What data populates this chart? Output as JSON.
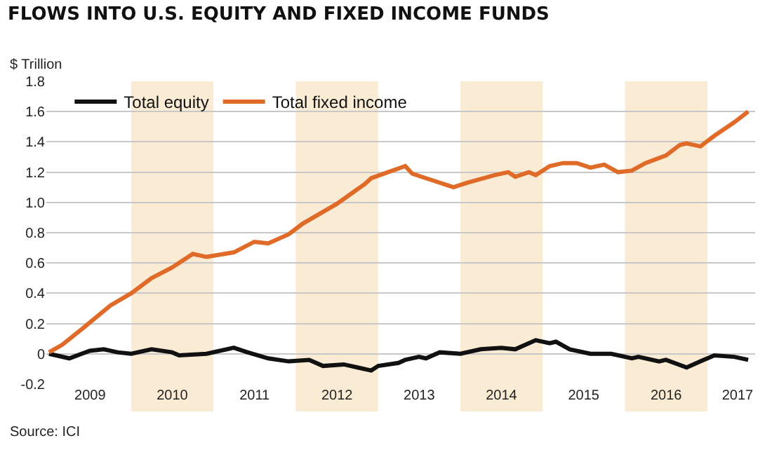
{
  "chart_data": {
    "type": "line",
    "title": "FLOWS INTO U.S. EQUITY AND FIXED INCOME FUNDS",
    "ylabel": "$ Trillion",
    "annotations": [
      "Source: ICI"
    ],
    "xlim": [
      "2008-12-20",
      "2017-08-01"
    ],
    "ylim": [
      -0.2,
      1.8
    ],
    "xticks": [
      {
        "value": "2009-07-02",
        "label": "2009"
      },
      {
        "value": "2010-07-02",
        "label": "2010"
      },
      {
        "value": "2011-07-02",
        "label": "2011"
      },
      {
        "value": "2012-07-02",
        "label": "2012"
      },
      {
        "value": "2013-07-02",
        "label": "2013"
      },
      {
        "value": "2014-07-02",
        "label": "2014"
      },
      {
        "value": "2015-07-02",
        "label": "2015"
      },
      {
        "value": "2016-07-02",
        "label": "2016"
      },
      {
        "value": "2017-05-15",
        "label": "2017"
      }
    ],
    "yticks": [
      {
        "value": -0.2,
        "label": "-0.2"
      },
      0,
      0.2,
      0.4,
      0.6,
      0.8,
      {
        "value": 1,
        "label": "1.0"
      },
      1.2,
      1.4,
      1.6,
      1.8
    ],
    "grid": "y",
    "legend": "top left",
    "marker": "none",
    "line_style": "solid",
    "bands": [
      {
        "axis": "x",
        "from": "2010-01-01",
        "to": "2011-01-01",
        "color": "#faecd4"
      },
      {
        "axis": "x",
        "from": "2012-01-01",
        "to": "2013-01-01",
        "color": "#faecd4"
      },
      {
        "axis": "x",
        "from": "2014-01-01",
        "to": "2015-01-01",
        "color": "#faecd4"
      },
      {
        "axis": "x",
        "from": "2016-01-01",
        "to": "2017-01-01",
        "color": "#faecd4"
      }
    ],
    "series": [
      {
        "name": "Total equity",
        "color": "#111111",
        "x": [
          "2009-01",
          "2009-04",
          "2009-07",
          "2009-09",
          "2009-11",
          "2010-01",
          "2010-04",
          "2010-07",
          "2010-08",
          "2010-12",
          "2011-04",
          "2011-06",
          "2011-09",
          "2011-12",
          "2012-03",
          "2012-05",
          "2012-08",
          "2012-10",
          "2012-12",
          "2013-01",
          "2013-04",
          "2013-05",
          "2013-07",
          "2013-08",
          "2013-10",
          "2014-01",
          "2014-04",
          "2014-07",
          "2014-09",
          "2014-12",
          "2015-02",
          "2015-03",
          "2015-05",
          "2015-08",
          "2015-11",
          "2016-02",
          "2016-03",
          "2016-06",
          "2016-07",
          "2016-10",
          "2016-12",
          "2017-02",
          "2017-05",
          "2017-07"
        ],
        "values": [
          0,
          -0.03,
          0.02,
          0.03,
          0.01,
          0,
          0.03,
          0.01,
          -0.01,
          0,
          0.04,
          0.01,
          -0.03,
          -0.05,
          -0.04,
          -0.08,
          -0.07,
          -0.09,
          -0.11,
          -0.08,
          -0.06,
          -0.04,
          -0.02,
          -0.03,
          0.01,
          0,
          0.03,
          0.04,
          0.03,
          0.09,
          0.07,
          0.08,
          0.03,
          0,
          0,
          -0.03,
          -0.02,
          -0.05,
          -0.04,
          -0.09,
          -0.05,
          -0.01,
          -0.02,
          -0.04
        ]
      },
      {
        "name": "Total fixed income",
        "color": "#e06a27",
        "x": [
          "2009-01",
          "2009-03",
          "2009-06",
          "2009-10",
          "2010-01",
          "2010-04",
          "2010-07",
          "2010-10",
          "2010-12",
          "2011-04",
          "2011-07",
          "2011-09",
          "2011-12",
          "2012-02",
          "2012-07",
          "2012-11",
          "2012-12",
          "2013-05",
          "2013-06",
          "2013-08",
          "2013-12",
          "2014-02",
          "2014-06",
          "2014-08",
          "2014-09",
          "2014-11",
          "2014-12",
          "2015-02",
          "2015-04",
          "2015-06",
          "2015-08",
          "2015-10",
          "2015-12",
          "2016-02",
          "2016-04",
          "2016-07",
          "2016-09",
          "2016-10",
          "2016-12",
          "2017-02",
          "2017-05",
          "2017-07"
        ],
        "values": [
          0.01,
          0.06,
          0.17,
          0.32,
          0.4,
          0.5,
          0.57,
          0.66,
          0.64,
          0.67,
          0.74,
          0.73,
          0.79,
          0.86,
          0.99,
          1.12,
          1.16,
          1.24,
          1.19,
          1.16,
          1.1,
          1.13,
          1.18,
          1.2,
          1.17,
          1.2,
          1.18,
          1.24,
          1.26,
          1.26,
          1.23,
          1.25,
          1.2,
          1.21,
          1.26,
          1.31,
          1.38,
          1.39,
          1.37,
          1.44,
          1.53,
          1.6
        ]
      }
    ]
  }
}
